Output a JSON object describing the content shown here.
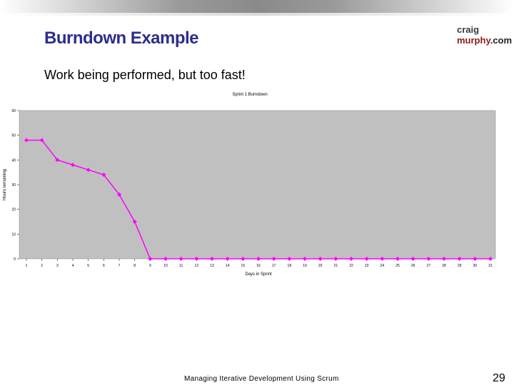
{
  "slide": {
    "title": "Burndown Example",
    "subtitle": "Work being performed, but too fast!",
    "footer": "Managing Iterative Development Using Scrum",
    "page_number": "29",
    "logo_line1": "craig",
    "logo_line2": "murphy",
    "logo_suffix": ".com"
  },
  "chart_data": {
    "type": "line",
    "title": "Sprint 1 Burndown",
    "xlabel": "Days in Sprint",
    "ylabel": "Hours remaining",
    "ylim": [
      0,
      60
    ],
    "yticks": [
      0,
      10,
      20,
      30,
      40,
      50,
      60
    ],
    "grid": false,
    "legend": "none",
    "x": [
      1,
      2,
      3,
      4,
      5,
      6,
      7,
      8,
      9,
      10,
      11,
      12,
      13,
      14,
      15,
      16,
      17,
      18,
      19,
      20,
      21,
      22,
      23,
      24,
      25,
      26,
      27,
      28,
      29,
      30,
      31
    ],
    "series": [
      {
        "values": [
          48,
          48,
          40,
          38,
          36,
          34,
          26,
          15,
          0,
          0,
          0,
          0,
          0,
          0,
          0,
          0,
          0,
          0,
          0,
          0,
          0,
          0,
          0,
          0,
          0,
          0,
          0,
          0,
          0,
          0,
          0
        ],
        "color": "#ff00ff"
      }
    ],
    "plot_background": "#c0c0c0"
  }
}
